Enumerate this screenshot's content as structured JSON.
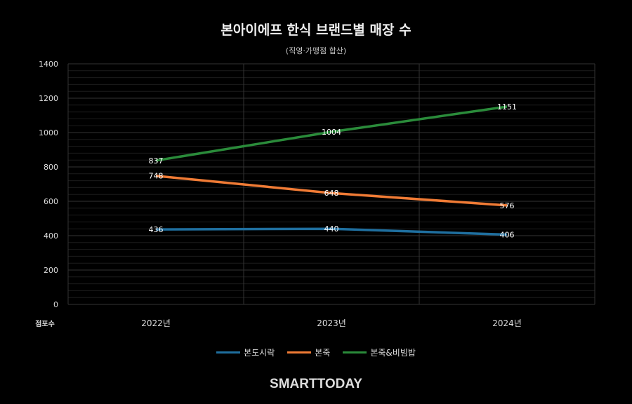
{
  "chart_data": {
    "type": "line",
    "title": "본아이에프 한식 브랜드별 매장 수",
    "subtitle": "(직영·가맹점 합산)",
    "ylabel": "점포수",
    "xlabel": "",
    "categories": [
      "2022년",
      "2023년",
      "2024년"
    ],
    "ylim": [
      0,
      1400
    ],
    "yticks": [
      0,
      200,
      400,
      600,
      800,
      1000,
      1200,
      1400
    ],
    "grid": true,
    "legend_position": "bottom",
    "series": [
      {
        "name": "본도시락",
        "values": [
          436,
          440,
          406
        ],
        "color": "#1f6f9f"
      },
      {
        "name": "본죽",
        "values": [
          748,
          648,
          576
        ],
        "color": "#f07b35"
      },
      {
        "name": "본죽&비빔밥",
        "values": [
          837,
          1004,
          1151
        ],
        "color": "#2a8b3a"
      }
    ]
  },
  "logo": "SMARTTODAY"
}
